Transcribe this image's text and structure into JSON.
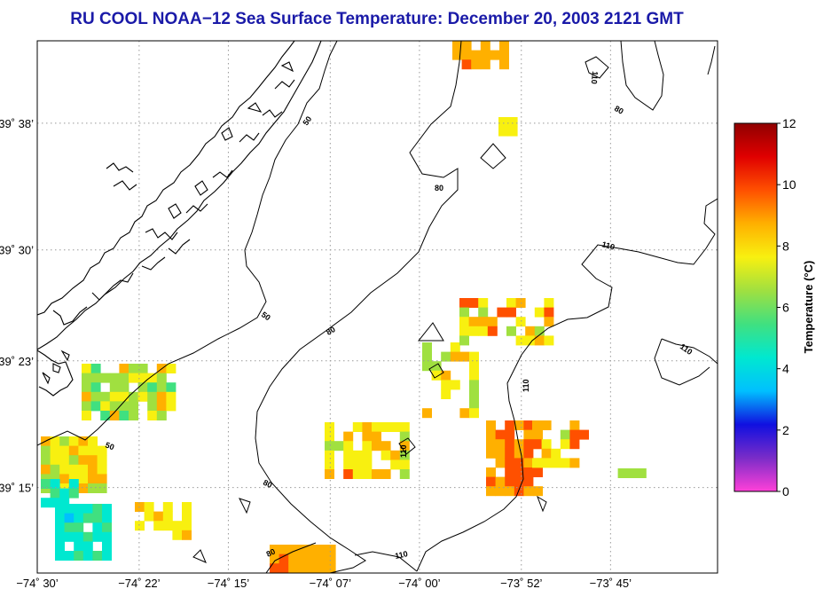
{
  "title": "RU COOL  NOAA−12  Sea Surface Temperature:  December 20, 2003 2121 GMT",
  "map": {
    "lon_range": [
      -74.5,
      -73.61
    ],
    "lat_range": [
      39.16,
      39.72
    ],
    "lon_ticks": [
      {
        "value": -74.5,
        "label": "−74˚ 30’"
      },
      {
        "value": -74.3667,
        "label": "−74˚ 22’"
      },
      {
        "value": -74.25,
        "label": "−74˚ 15’"
      },
      {
        "value": -74.1167,
        "label": "−74˚ 07’"
      },
      {
        "value": -74.0,
        "label": "−74˚ 00’"
      },
      {
        "value": -73.8667,
        "label": "−73˚ 52’"
      },
      {
        "value": -73.75,
        "label": "−73˚ 45’"
      }
    ],
    "lat_ticks": [
      {
        "value": 39.6333,
        "label": "39˚ 38’"
      },
      {
        "value": 39.5,
        "label": "39˚ 30’"
      },
      {
        "value": 39.3833,
        "label": "39˚ 23’"
      },
      {
        "value": 39.25,
        "label": "39˚ 15’"
      }
    ],
    "grid": "dotted",
    "bathymetry_contours": [
      {
        "label": "50"
      },
      {
        "label": "80"
      },
      {
        "label": "110"
      }
    ],
    "colors": {
      "land_fill": "#ffffff",
      "coastline": "#000000",
      "grid": "#999999",
      "title": "#1a1aa8"
    }
  },
  "colorbar": {
    "title": "Temperature (°C)",
    "min": 0,
    "max": 12,
    "ticks": [
      "0",
      "2",
      "4",
      "6",
      "8",
      "10",
      "12"
    ],
    "stops": [
      "#ff40d8",
      "#7a2cc8",
      "#1010e0",
      "#00c0ff",
      "#00e8d0",
      "#40e080",
      "#a0e040",
      "#f8f010",
      "#ffb000",
      "#ff5000",
      "#e00000",
      "#900000"
    ]
  }
}
